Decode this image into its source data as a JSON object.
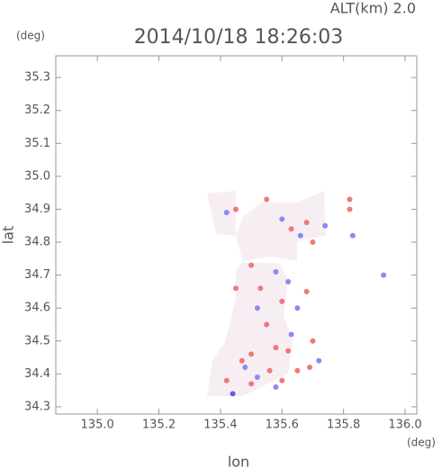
{
  "chart_data": {
    "type": "scatter",
    "title": "2014/10/18 18:26:03",
    "subtitle": "ALT(km) 2.0",
    "x_label": "lon",
    "y_label": "lat",
    "x_unit": "(deg)",
    "y_unit": "(deg)",
    "xlim": [
      134.865,
      136.038
    ],
    "ylim": [
      34.278,
      35.366
    ],
    "xticks": [
      {
        "value": 135,
        "label": "135.0"
      },
      135.2,
      135.4,
      135.6,
      135.8,
      {
        "value": 136,
        "label": "136.0"
      }
    ],
    "yticks": [
      34.3,
      34.4,
      34.5,
      34.6,
      34.7,
      34.8,
      34.9,
      {
        "value": 35,
        "label": "35.0"
      },
      35.1,
      35.2,
      35.3
    ],
    "x": [
      135.45,
      135.42,
      135.55,
      135.6,
      135.63,
      135.66,
      135.68,
      135.7,
      135.74,
      135.82,
      135.82,
      135.83,
      135.93,
      135.5,
      135.58,
      135.53,
      135.45,
      135.62,
      135.68,
      135.6,
      135.52,
      135.65,
      135.55,
      135.63,
      135.7,
      135.58,
      135.62,
      135.5,
      135.72,
      135.48,
      135.56,
      135.65,
      135.69,
      135.52,
      135.6,
      135.42,
      135.5,
      135.44,
      135.58,
      135.47
    ],
    "y": [
      34.9,
      34.89,
      34.93,
      34.87,
      34.84,
      34.82,
      34.86,
      34.8,
      34.85,
      34.93,
      34.9,
      34.82,
      34.7,
      34.73,
      34.71,
      34.66,
      34.66,
      34.68,
      34.65,
      34.62,
      34.6,
      34.6,
      34.55,
      34.52,
      34.5,
      34.48,
      34.47,
      34.46,
      34.44,
      34.42,
      34.41,
      34.41,
      34.42,
      34.39,
      34.38,
      34.38,
      34.37,
      34.34,
      34.36,
      34.44
    ],
    "colors": [
      "#f07878",
      "#8a8af0",
      "#f07878",
      "#8a8af0",
      "#f07878",
      "#8a8af0",
      "#f07878",
      "#f07878",
      "#8a8af0",
      "#f07878",
      "#f07878",
      "#8a8af0",
      "#8a8af0",
      "#f07878",
      "#8a8af0",
      "#f07878",
      "#f07878",
      "#8a8af0",
      "#f07878",
      "#f07878",
      "#8a8af0",
      "#8a8af0",
      "#f07878",
      "#8a8af0",
      "#f07878",
      "#f07878",
      "#f07878",
      "#f07878",
      "#8a8af0",
      "#8a8af0",
      "#f07878",
      "#f07878",
      "#f07878",
      "#8a8af0",
      "#f07878",
      "#f07878",
      "#f07878",
      "#6060e0",
      "#8a8af0",
      "#f07878"
    ]
  }
}
